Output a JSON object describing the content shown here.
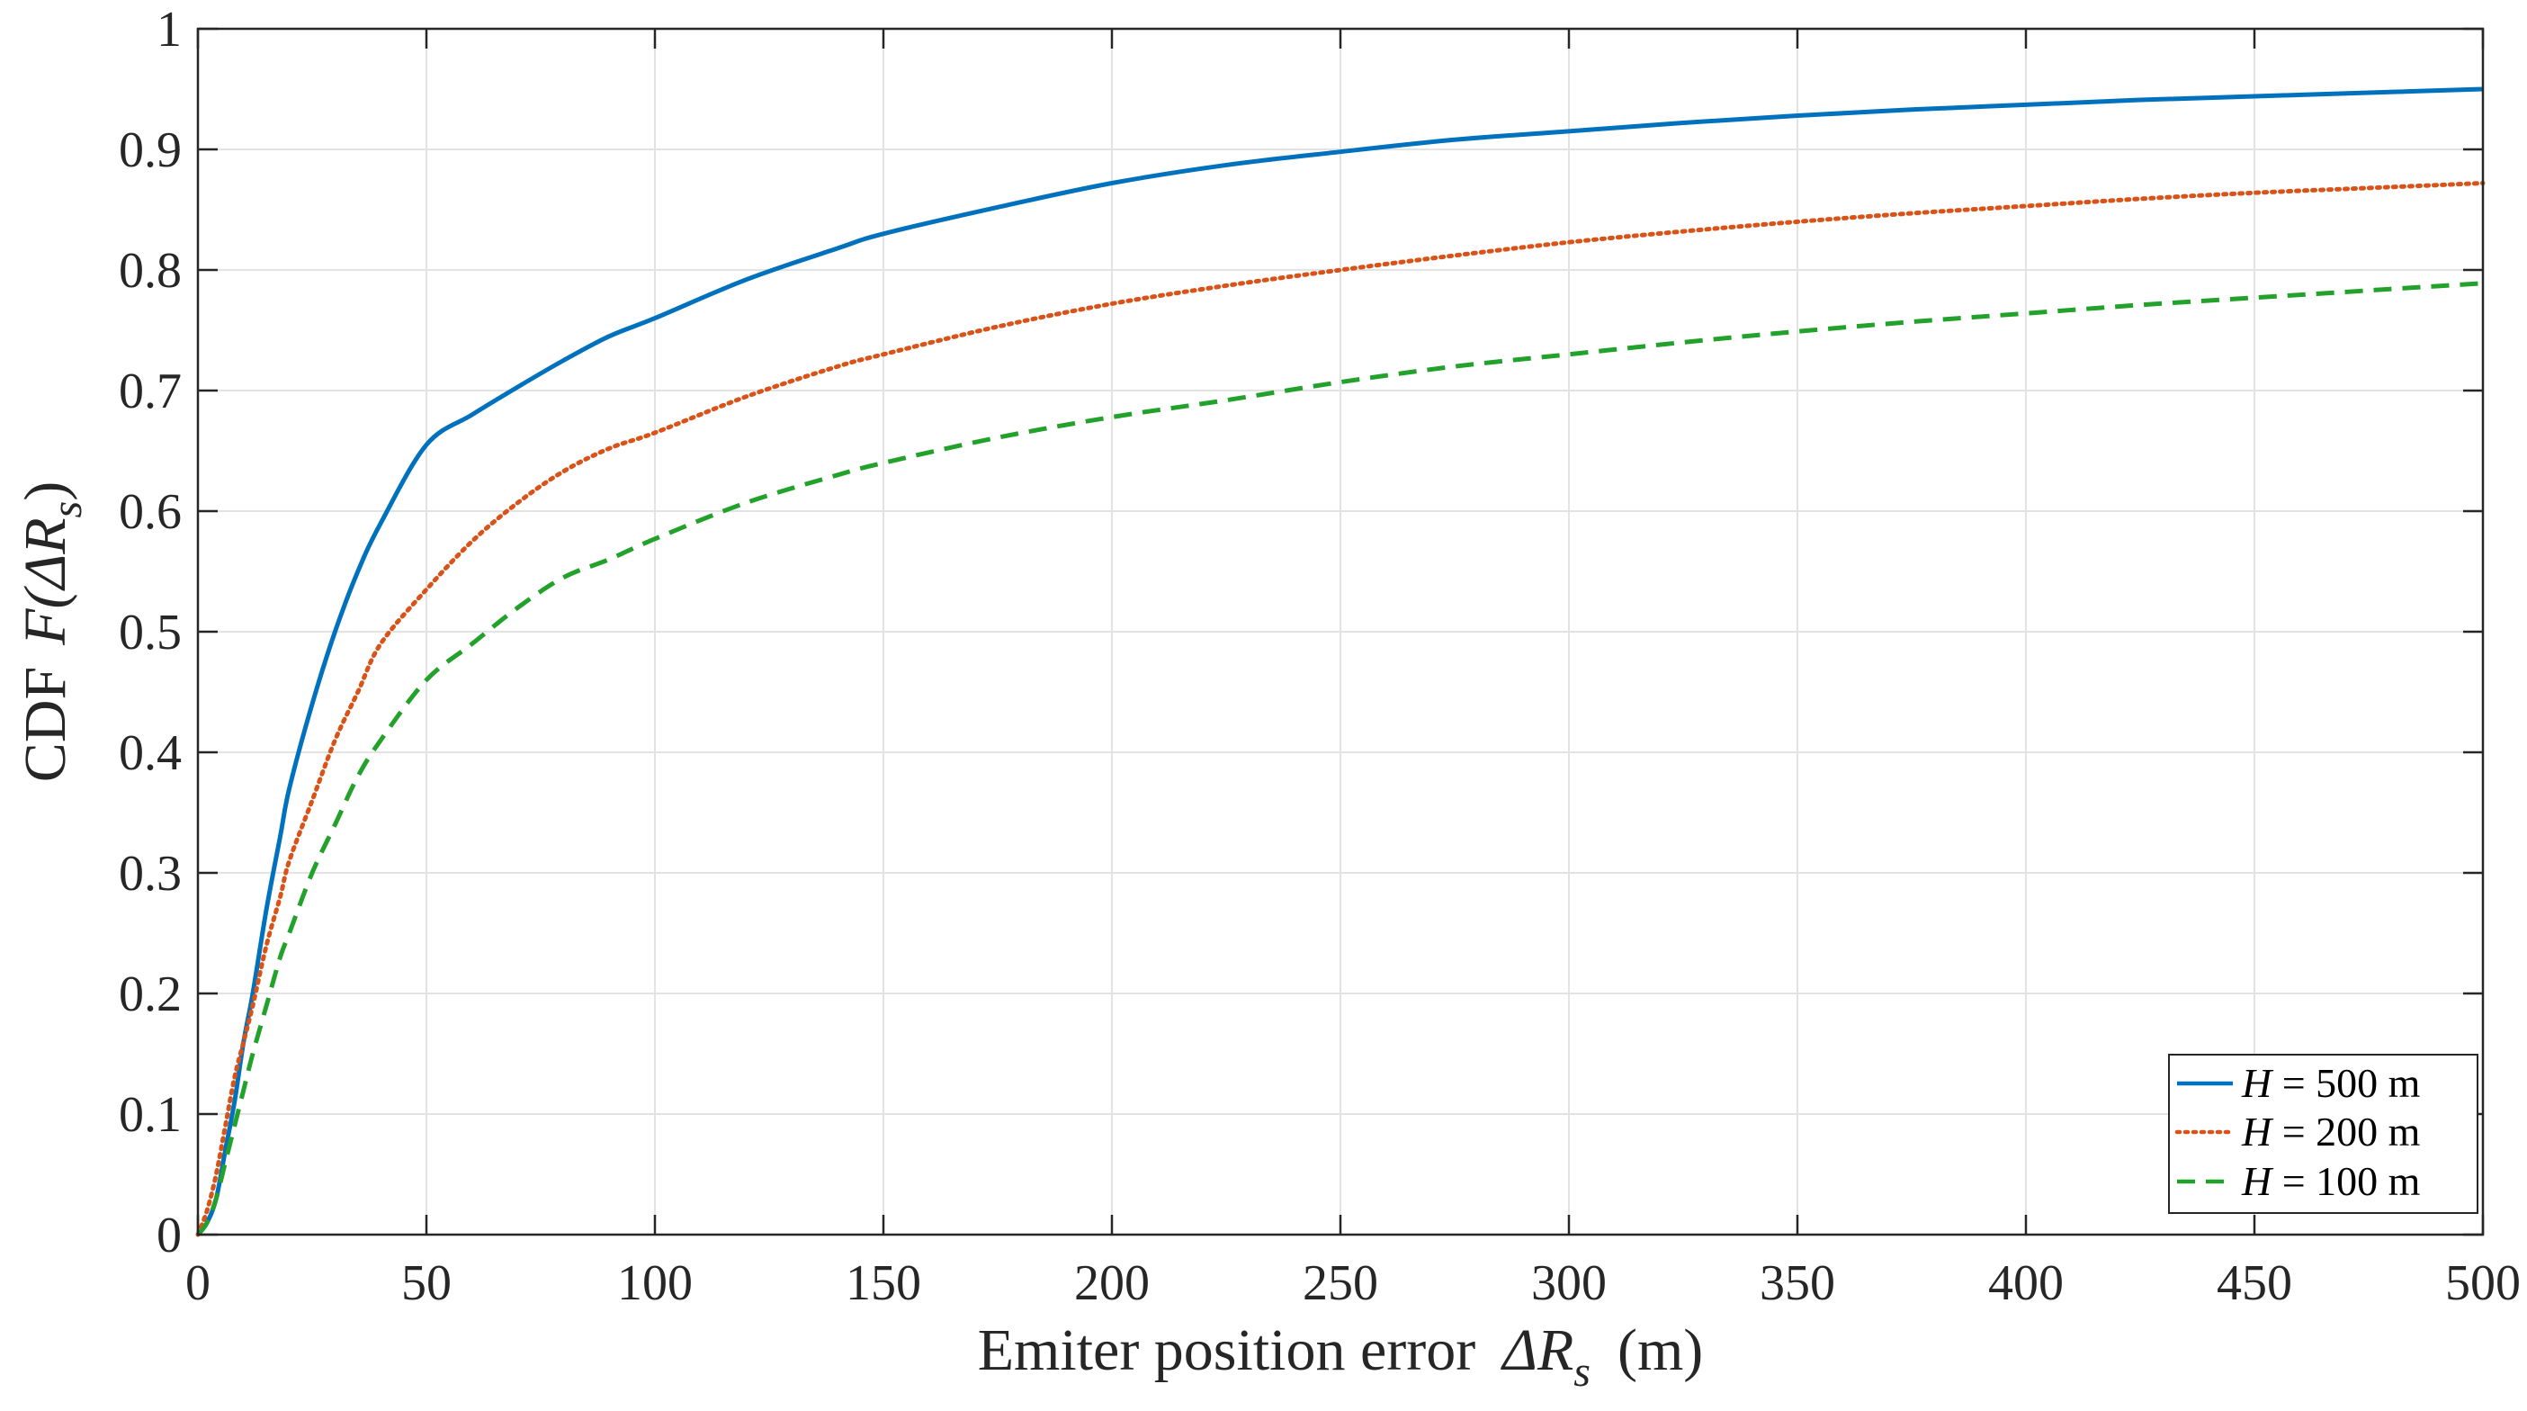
{
  "chart_data": {
    "type": "line",
    "title": "",
    "xlabel": {
      "text": "Emiter position error",
      "symbol": "ΔR",
      "subscript": "s",
      "unit": "(m)"
    },
    "ylabel": {
      "prefix": "CDF",
      "symbol": "F(ΔR",
      "subscript": "s",
      "suffix": ")"
    },
    "xlim": [
      0,
      500
    ],
    "ylim": [
      0,
      1
    ],
    "grid": true,
    "xticks": [
      0,
      50,
      100,
      150,
      200,
      250,
      300,
      350,
      400,
      450,
      500
    ],
    "yticks": [
      0,
      0.1,
      0.2,
      0.3,
      0.4,
      0.5,
      0.6,
      0.7,
      0.8,
      0.9,
      1
    ],
    "xtick_labels": [
      "0",
      "50",
      "100",
      "150",
      "200",
      "250",
      "300",
      "350",
      "400",
      "450",
      "500"
    ],
    "ytick_labels": [
      "0",
      "0.1",
      "0.2",
      "0.3",
      "0.4",
      "0.5",
      "0.6",
      "0.7",
      "0.8",
      "0.9",
      "1"
    ],
    "legend_position": "bottom-right",
    "series": [
      {
        "name": "H = 500 m",
        "var": "H",
        "rest": " = 500 m",
        "color": "#0072BD",
        "style": "solid",
        "x": [
          0,
          2,
          4,
          6,
          8,
          10,
          12,
          15,
          18,
          20,
          25,
          30,
          35,
          40,
          50,
          60,
          70,
          80,
          90,
          100,
          120,
          140,
          150,
          175,
          200,
          225,
          250,
          275,
          300,
          325,
          350,
          375,
          400,
          425,
          450,
          475,
          500
        ],
        "y": [
          0,
          0.01,
          0.03,
          0.07,
          0.11,
          0.16,
          0.2,
          0.27,
          0.33,
          0.37,
          0.44,
          0.5,
          0.55,
          0.59,
          0.655,
          0.68,
          0.703,
          0.725,
          0.745,
          0.76,
          0.792,
          0.818,
          0.83,
          0.852,
          0.872,
          0.887,
          0.898,
          0.908,
          0.915,
          0.922,
          0.928,
          0.933,
          0.937,
          0.941,
          0.944,
          0.947,
          0.95
        ]
      },
      {
        "name": "H = 200 m",
        "var": "H",
        "rest": " = 200 m",
        "color": "#D95319",
        "style": "dotted",
        "x": [
          0,
          2,
          4,
          6,
          8,
          10,
          12,
          15,
          18,
          20,
          25,
          30,
          35,
          40,
          50,
          60,
          70,
          80,
          90,
          100,
          120,
          140,
          150,
          175,
          200,
          225,
          250,
          275,
          300,
          325,
          350,
          375,
          400,
          425,
          450,
          475,
          500
        ],
        "y": [
          0,
          0.02,
          0.05,
          0.09,
          0.13,
          0.16,
          0.19,
          0.24,
          0.28,
          0.31,
          0.36,
          0.41,
          0.45,
          0.49,
          0.535,
          0.575,
          0.607,
          0.633,
          0.652,
          0.665,
          0.695,
          0.72,
          0.73,
          0.753,
          0.772,
          0.787,
          0.8,
          0.812,
          0.823,
          0.832,
          0.84,
          0.847,
          0.853,
          0.859,
          0.864,
          0.868,
          0.872
        ]
      },
      {
        "name": "H = 100 m",
        "var": "H",
        "rest": " = 100 m",
        "color": "#22A12B",
        "style": "dashed",
        "x": [
          0,
          2,
          4,
          6,
          8,
          10,
          12,
          15,
          18,
          20,
          25,
          30,
          35,
          40,
          50,
          60,
          70,
          80,
          90,
          100,
          120,
          140,
          150,
          175,
          200,
          225,
          250,
          275,
          300,
          325,
          350,
          375,
          400,
          425,
          450,
          475,
          500
        ],
        "y": [
          0,
          0.01,
          0.03,
          0.06,
          0.09,
          0.12,
          0.15,
          0.19,
          0.23,
          0.25,
          0.3,
          0.34,
          0.38,
          0.41,
          0.46,
          0.49,
          0.52,
          0.545,
          0.56,
          0.577,
          0.607,
          0.63,
          0.64,
          0.661,
          0.678,
          0.692,
          0.707,
          0.72,
          0.73,
          0.74,
          0.749,
          0.757,
          0.764,
          0.771,
          0.777,
          0.783,
          0.789
        ]
      }
    ]
  }
}
